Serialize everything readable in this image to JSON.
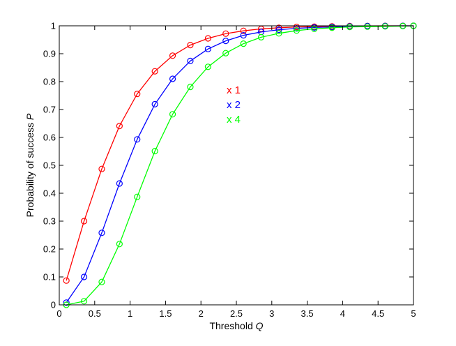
{
  "chart_data": {
    "type": "line",
    "title": "",
    "xlabel": "Threshold",
    "xlabel_var": "Q",
    "ylabel": "Probability of success",
    "ylabel_var": "P",
    "xlim": [
      0,
      5
    ],
    "ylim": [
      0,
      1
    ],
    "xticks": [
      "0",
      "0.5",
      "1",
      "1.5",
      "2",
      "2.5",
      "3",
      "3.5",
      "4",
      "4.5",
      "5"
    ],
    "yticks": [
      "0",
      "0.1",
      "0.2",
      "0.3",
      "0.4",
      "0.5",
      "0.6",
      "0.7",
      "0.8",
      "0.9",
      "1"
    ],
    "grid": false,
    "legend_placement": "inside-upper-middle",
    "x": [
      0.1,
      0.35,
      0.6,
      0.85,
      1.1,
      1.35,
      1.6,
      1.85,
      2.1,
      2.35,
      2.6,
      2.85,
      3.1,
      3.35,
      3.6,
      3.85,
      4.1,
      4.35,
      4.6,
      4.85,
      5.0
    ],
    "series": [
      {
        "name": "x 1",
        "color": "#ff0000",
        "values": [
          0.087,
          0.3,
          0.487,
          0.641,
          0.756,
          0.837,
          0.893,
          0.931,
          0.955,
          0.972,
          0.982,
          0.989,
          0.993,
          0.996,
          0.997,
          0.998,
          0.999,
          0.9995,
          0.9998,
          0.9999,
          1.0
        ]
      },
      {
        "name": "x 2",
        "color": "#0000ff",
        "values": [
          0.008,
          0.1,
          0.258,
          0.435,
          0.593,
          0.719,
          0.81,
          0.874,
          0.917,
          0.946,
          0.966,
          0.978,
          0.986,
          0.991,
          0.994,
          0.996,
          0.998,
          0.999,
          0.9995,
          0.9998,
          1.0
        ]
      },
      {
        "name": "x 4",
        "color": "#00ff00",
        "values": [
          0.0,
          0.013,
          0.082,
          0.218,
          0.387,
          0.551,
          0.683,
          0.781,
          0.853,
          0.902,
          0.936,
          0.959,
          0.973,
          0.983,
          0.989,
          0.993,
          0.996,
          0.997,
          0.998,
          0.999,
          1.0
        ]
      }
    ]
  }
}
